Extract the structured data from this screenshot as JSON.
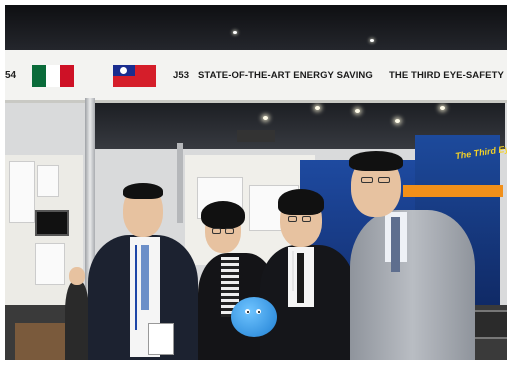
{
  "banner": {
    "edge_text": "54",
    "booth_code": "J53",
    "project_title_1": "STATE-OF-THE-ART ENERGY SAVING",
    "project_title_2": "THE THIRD EYE-SAFETY D"
  },
  "poster": {
    "title": "The Third Eye"
  },
  "flags": {
    "mexico": {
      "colors": [
        "#0a6b3a",
        "#ffffff",
        "#ce1126"
      ]
    },
    "taiwan": {
      "red": "#d51e2a",
      "blue": "#1a2d8f"
    }
  },
  "people_count": 4
}
